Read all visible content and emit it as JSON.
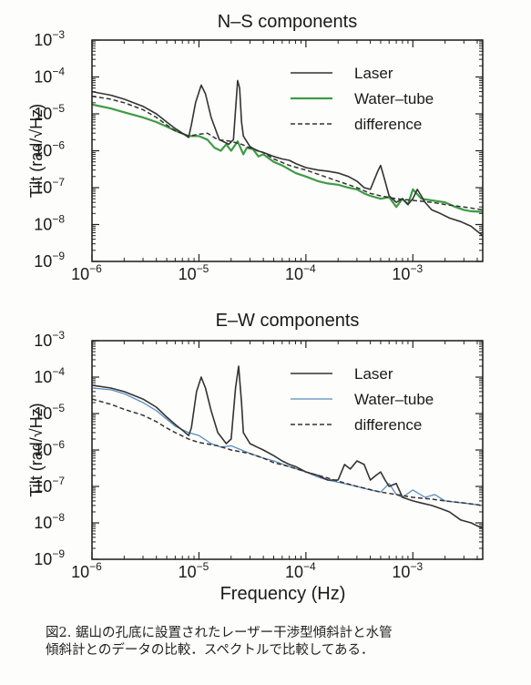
{
  "chart_data": [
    {
      "type": "line",
      "title": "N–S components",
      "ylabel": "Tilt  (rad/√Hz)",
      "xlabel": "",
      "x_scale": "log",
      "y_scale": "log",
      "xlim": [
        1e-06,
        0.0045
      ],
      "ylim": [
        1e-09,
        0.001
      ],
      "x_ticks": [
        {
          "v": 1e-06,
          "base": "10",
          "exp": "−6"
        },
        {
          "v": 1e-05,
          "base": "10",
          "exp": "−5"
        },
        {
          "v": 0.0001,
          "base": "10",
          "exp": "−4"
        },
        {
          "v": 0.001,
          "base": "10",
          "exp": "−3"
        }
      ],
      "y_ticks": [
        {
          "v": 1e-09,
          "base": "10",
          "exp": "−9"
        },
        {
          "v": 1e-08,
          "base": "10",
          "exp": "−8"
        },
        {
          "v": 1e-07,
          "base": "10",
          "exp": "−7"
        },
        {
          "v": 1e-06,
          "base": "10",
          "exp": "−6"
        },
        {
          "v": 1e-05,
          "base": "10",
          "exp": "−5"
        },
        {
          "v": 0.0001,
          "base": "10",
          "exp": "−4"
        },
        {
          "v": 0.001,
          "base": "10",
          "exp": "−3"
        }
      ],
      "legend_position": "top-right",
      "series": [
        {
          "name": "Laser",
          "color": "#333333",
          "style": "solid",
          "width": 1.6,
          "x": [
            1e-06,
            1.5e-06,
            2e-06,
            3e-06,
            4e-06,
            5e-06,
            6e-06,
            7e-06,
            8e-06,
            8.5e-06,
            9.3e-06,
            1.05e-05,
            1.15e-05,
            1.3e-05,
            1.55e-05,
            1.9e-05,
            2.1e-05,
            2.3e-05,
            2.4e-05,
            2.5e-05,
            2.6e-05,
            3e-05,
            3.5e-05,
            4e-05,
            5e-05,
            6e-05,
            7e-05,
            8e-05,
            0.0001,
            0.00013,
            0.00016,
            0.0002,
            0.00025,
            0.0003,
            0.00035,
            0.0004,
            0.00047,
            0.0005,
            0.00055,
            0.0006,
            0.0007,
            0.0008,
            0.0009,
            0.001,
            0.0011,
            0.0013,
            0.0015,
            0.0018,
            0.0022,
            0.0028,
            0.0035,
            0.0045
          ],
          "y": [
            4e-05,
            3.2e-05,
            2.5e-05,
            1.6e-05,
            1e-05,
            6e-06,
            4e-06,
            3e-06,
            2.3e-06,
            5e-06,
            2e-05,
            6e-05,
            3.5e-05,
            8e-06,
            2e-06,
            1.5e-06,
            2e-06,
            8e-05,
            5e-05,
            6e-06,
            2.5e-06,
            1.3e-06,
            1e-06,
            9e-07,
            7e-07,
            6e-07,
            5.5e-07,
            4.5e-07,
            3.5e-07,
            3e-07,
            2.8e-07,
            2.5e-07,
            2e-07,
            1.5e-07,
            1e-07,
            9e-08,
            2.8e-07,
            4e-07,
            1.5e-07,
            6e-08,
            4e-08,
            5e-08,
            3.5e-08,
            5e-08,
            9e-08,
            4e-08,
            2.5e-08,
            2e-08,
            1.5e-08,
            1.2e-08,
            9e-09,
            5e-09
          ]
        },
        {
          "name": "Water–tube",
          "color": "#3f9a45",
          "style": "solid",
          "width": 2.2,
          "x": [
            1e-06,
            1.5e-06,
            2e-06,
            3e-06,
            4e-06,
            5e-06,
            6e-06,
            8e-06,
            1e-05,
            1.2e-05,
            1.4e-05,
            1.6e-05,
            1.8e-05,
            2e-05,
            2.3e-05,
            2.6e-05,
            2.8e-05,
            3.2e-05,
            3.6e-05,
            4e-05,
            5e-05,
            6e-05,
            8e-05,
            0.0001,
            0.00013,
            0.00016,
            0.0002,
            0.00025,
            0.0003,
            0.00035,
            0.0004,
            0.0005,
            0.0006,
            0.0007,
            0.0008,
            0.0009,
            0.001,
            0.0012,
            0.0015,
            0.002,
            0.0025,
            0.003,
            0.0035,
            0.0045
          ],
          "y": [
            1.8e-05,
            1.4e-05,
            1.1e-05,
            8e-06,
            6e-06,
            4.5e-06,
            3.5e-06,
            2.5e-06,
            2.5e-06,
            2e-06,
            1.2e-06,
            1e-06,
            1.5e-06,
            1e-06,
            1.8e-06,
            8e-07,
            1.2e-06,
            1.1e-06,
            7e-07,
            8e-07,
            5e-07,
            4e-07,
            2.5e-07,
            2e-07,
            1.5e-07,
            1.3e-07,
            1.2e-07,
            1e-07,
            9e-08,
            7e-08,
            6e-08,
            5e-08,
            5.5e-08,
            3e-08,
            5e-08,
            3.5e-08,
            9e-08,
            5e-08,
            4.5e-08,
            4e-08,
            3e-08,
            2.5e-08,
            2.3e-08,
            2.2e-08
          ]
        },
        {
          "name": "difference",
          "color": "#333333",
          "style": "dashed",
          "width": 1.5,
          "x": [
            1e-06,
            1.5e-06,
            2e-06,
            3e-06,
            4e-06,
            5e-06,
            6e-06,
            8e-06,
            1e-05,
            1.2e-05,
            1.5e-05,
            2e-05,
            2.5e-05,
            3e-05,
            4e-05,
            5e-05,
            7e-05,
            0.0001,
            0.00015,
            0.0002,
            0.0003,
            0.0004,
            0.0005,
            0.0007,
            0.001,
            0.0015,
            0.002,
            0.003,
            0.0045
          ],
          "y": [
            3e-05,
            2.5e-05,
            2e-05,
            1.3e-05,
            8e-06,
            5e-06,
            3.5e-06,
            2.5e-06,
            2.8e-06,
            3e-06,
            2e-06,
            1.8e-06,
            1.5e-06,
            1.2e-06,
            9e-07,
            6e-07,
            4e-07,
            3e-07,
            2e-07,
            1.5e-07,
            1e-07,
            7e-08,
            6e-08,
            5e-08,
            4.5e-08,
            4e-08,
            3.5e-08,
            3e-08,
            2.5e-08
          ]
        }
      ]
    },
    {
      "type": "line",
      "title": "E–W components",
      "ylabel": "Tilt  (rad/√Hz)",
      "xlabel": "Frequency  (Hz)",
      "x_scale": "log",
      "y_scale": "log",
      "xlim": [
        1e-06,
        0.0045
      ],
      "ylim": [
        1e-09,
        0.001
      ],
      "x_ticks": [
        {
          "v": 1e-06,
          "base": "10",
          "exp": "−6"
        },
        {
          "v": 1e-05,
          "base": "10",
          "exp": "−5"
        },
        {
          "v": 0.0001,
          "base": "10",
          "exp": "−4"
        },
        {
          "v": 0.001,
          "base": "10",
          "exp": "−3"
        }
      ],
      "y_ticks": [
        {
          "v": 1e-09,
          "base": "10",
          "exp": "−9"
        },
        {
          "v": 1e-08,
          "base": "10",
          "exp": "−8"
        },
        {
          "v": 1e-07,
          "base": "10",
          "exp": "−7"
        },
        {
          "v": 1e-06,
          "base": "10",
          "exp": "−6"
        },
        {
          "v": 1e-05,
          "base": "10",
          "exp": "−5"
        },
        {
          "v": 0.0001,
          "base": "10",
          "exp": "−4"
        },
        {
          "v": 0.001,
          "base": "10",
          "exp": "−3"
        }
      ],
      "legend_position": "top-right",
      "series": [
        {
          "name": "Laser",
          "color": "#333333",
          "style": "solid",
          "width": 1.6,
          "x": [
            1e-06,
            1.5e-06,
            2e-06,
            3e-06,
            4e-06,
            5e-06,
            6e-06,
            7e-06,
            8e-06,
            8.5e-06,
            9.5e-06,
            1.05e-05,
            1.15e-05,
            1.3e-05,
            1.5e-05,
            1.8e-05,
            2e-05,
            2.2e-05,
            2.35e-05,
            2.5e-05,
            2.6e-05,
            3e-05,
            3.5e-05,
            4e-05,
            5e-05,
            6e-05,
            7e-05,
            8e-05,
            0.0001,
            0.00013,
            0.00016,
            0.0002,
            0.00023,
            0.00026,
            0.0003,
            0.00035,
            0.0004,
            0.00045,
            0.0005,
            0.00055,
            0.0006,
            0.0007,
            0.0008,
            0.001,
            0.0012,
            0.0015,
            0.0018,
            0.0022,
            0.0028,
            0.0035,
            0.0045
          ],
          "y": [
            6e-05,
            5e-05,
            4e-05,
            2.5e-05,
            1.5e-05,
            8e-06,
            5e-06,
            3.5e-06,
            2.5e-06,
            4e-06,
            4e-05,
            0.0001,
            5e-05,
            1.2e-05,
            3e-06,
            1.5e-06,
            2e-06,
            5e-05,
            0.0002,
            2e-05,
            3e-06,
            1.5e-06,
            1.2e-06,
            1e-06,
            7e-07,
            5e-07,
            4e-07,
            3.5e-07,
            2.5e-07,
            2e-07,
            1.5e-07,
            1.5e-07,
            4e-07,
            3e-07,
            5e-07,
            4e-07,
            1.5e-07,
            2e-07,
            2.5e-07,
            1.5e-07,
            1e-07,
            1.2e-07,
            5e-08,
            4e-08,
            3.5e-08,
            3e-08,
            2.5e-08,
            2e-08,
            1.2e-08,
            1e-08,
            7e-09
          ]
        },
        {
          "name": "Water–tube",
          "color": "#5a8cc0",
          "style": "solid",
          "width": 1.3,
          "x": [
            1e-06,
            1.5e-06,
            2e-06,
            3e-06,
            4e-06,
            5e-06,
            6e-06,
            8e-06,
            1e-05,
            1.3e-05,
            1.6e-05,
            2e-05,
            2.5e-05,
            3e-05,
            4e-05,
            5e-05,
            7e-05,
            0.0001,
            0.00013,
            0.00016,
            0.0002,
            0.0003,
            0.0004,
            0.0005,
            0.0006,
            0.0007,
            0.0008,
            0.001,
            0.0013,
            0.0016,
            0.002,
            0.003,
            0.0045
          ],
          "y": [
            5e-05,
            4.5e-05,
            3.5e-05,
            2e-05,
            1.2e-05,
            7e-06,
            4.5e-06,
            3e-06,
            2.5e-06,
            1.5e-06,
            1.2e-06,
            1.3e-06,
            1e-06,
            8e-07,
            6e-07,
            5e-07,
            3.5e-07,
            2.5e-07,
            1.8e-07,
            1.5e-07,
            1.3e-07,
            1e-07,
            8e-08,
            7e-08,
            1.2e-07,
            6e-08,
            5e-08,
            8e-08,
            5e-08,
            6e-08,
            4e-08,
            3.5e-08,
            3e-08
          ]
        },
        {
          "name": "difference",
          "color": "#333333",
          "style": "dashed",
          "width": 1.5,
          "x": [
            1e-06,
            1.5e-06,
            2e-06,
            3e-06,
            4e-06,
            5e-06,
            6e-06,
            8e-06,
            1e-05,
            1.5e-05,
            2e-05,
            3e-05,
            4e-05,
            5e-05,
            7e-05,
            0.0001,
            0.00015,
            0.0002,
            0.0003,
            0.0005,
            0.0007,
            0.001,
            0.0015,
            0.002,
            0.003,
            0.0045
          ],
          "y": [
            2.5e-05,
            1.8e-05,
            1.3e-05,
            9e-06,
            6e-06,
            4e-06,
            3e-06,
            2e-06,
            1.6e-06,
            1.3e-06,
            1e-06,
            8e-07,
            6e-07,
            4.5e-07,
            3.5e-07,
            2.5e-07,
            1.8e-07,
            1.4e-07,
            1e-07,
            7e-08,
            6e-08,
            5e-08,
            4.5e-08,
            4e-08,
            3.5e-08,
            3e-08
          ]
        }
      ]
    }
  ],
  "caption": "図2. 鋸山の孔底に設置されたレーザー干渉型傾斜計と水管\n傾斜計とのデータの比較．スペクトルで比較してある．"
}
